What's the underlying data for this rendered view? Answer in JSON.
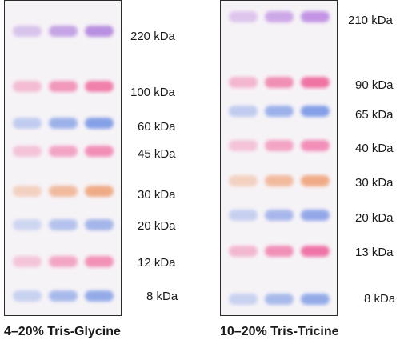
{
  "gels": [
    {
      "caption": "4–20% Tris-Glycine",
      "bands": [
        {
          "label": "220 kDa",
          "color": "#b58ae0"
        },
        {
          "label": "100 kDa",
          "color": "#f07aa8"
        },
        {
          "label": "60 kDa",
          "color": "#7f9ce6"
        },
        {
          "label": "45 kDa",
          "color": "#f28ab5"
        },
        {
          "label": "30 kDa",
          "color": "#f0a880"
        },
        {
          "label": "20 kDa",
          "color": "#9fb2ea"
        },
        {
          "label": "12 kDa",
          "color": "#f18db3"
        },
        {
          "label": "8 kDa",
          "color": "#8fa8e8"
        }
      ]
    },
    {
      "caption": "10–20% Tris-Tricine",
      "bands": [
        {
          "label": "210 kDa",
          "color": "#c08fe2"
        },
        {
          "label": "90 kDa",
          "color": "#ef6e9f"
        },
        {
          "label": "65 kDa",
          "color": "#7f9ce6"
        },
        {
          "label": "40 kDa",
          "color": "#f28ab5"
        },
        {
          "label": "30 kDa",
          "color": "#f0a880"
        },
        {
          "label": "20 kDa",
          "color": "#8fa4e8"
        },
        {
          "label": "13 kDa",
          "color": "#ef6fa3"
        },
        {
          "label": "8 kDa",
          "color": "#8fa8e8"
        }
      ]
    }
  ]
}
